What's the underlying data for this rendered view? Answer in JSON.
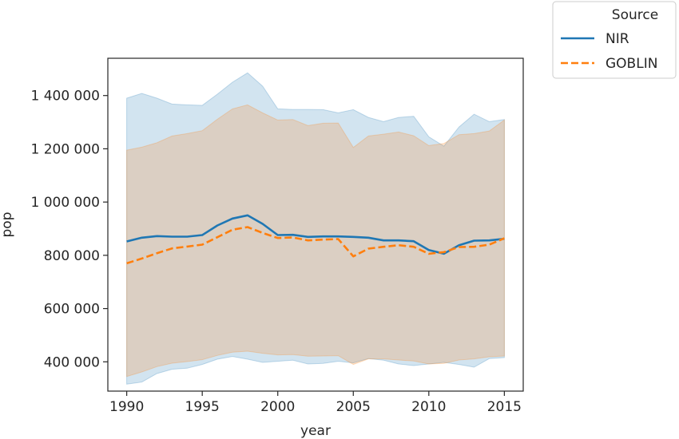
{
  "chart_data": {
    "type": "line",
    "xlabel": "year",
    "ylabel": "pop",
    "xlim": [
      1988.75,
      2016.25
    ],
    "ylim": [
      290000,
      1540000
    ],
    "x_ticks": [
      1990,
      1995,
      2000,
      2005,
      2010,
      2015
    ],
    "x_tick_labels": [
      "1990",
      "1995",
      "2000",
      "2005",
      "2010",
      "2015"
    ],
    "y_ticks": [
      400000,
      600000,
      800000,
      1000000,
      1200000,
      1400000
    ],
    "y_tick_labels": [
      "400 000",
      "600 000",
      "800 000",
      "1 000 000",
      "1 200 000",
      "1 400 000"
    ],
    "grid": false,
    "legend": {
      "title": "Source",
      "placement": "outside-top-right"
    },
    "x": [
      1990,
      1991,
      1992,
      1993,
      1994,
      1995,
      1996,
      1997,
      1998,
      1999,
      2000,
      2001,
      2002,
      2003,
      2004,
      2005,
      2006,
      2007,
      2008,
      2009,
      2010,
      2011,
      2012,
      2013,
      2014,
      2015
    ],
    "series": [
      {
        "name": "NIR",
        "color": "#1f77b4",
        "dash": "solid",
        "values": [
          852000,
          866000,
          872000,
          870000,
          870000,
          876000,
          912000,
          938000,
          950000,
          918000,
          876000,
          877000,
          869000,
          871000,
          871000,
          869000,
          866000,
          856000,
          856000,
          853000,
          820000,
          806000,
          838000,
          855000,
          856000,
          862000
        ],
        "band_upper": [
          1390000,
          1408000,
          1390000,
          1368000,
          1365000,
          1363000,
          1405000,
          1450000,
          1485000,
          1435000,
          1350000,
          1348000,
          1348000,
          1347000,
          1335000,
          1347000,
          1318000,
          1302000,
          1318000,
          1322000,
          1245000,
          1210000,
          1282000,
          1330000,
          1302000,
          1310000
        ],
        "band_lower": [
          316000,
          324000,
          356000,
          372000,
          376000,
          390000,
          410000,
          420000,
          410000,
          398000,
          402000,
          406000,
          392000,
          394000,
          402000,
          396000,
          412000,
          406000,
          392000,
          386000,
          392000,
          398000,
          390000,
          380000,
          412000,
          416000
        ]
      },
      {
        "name": "GOBLIN",
        "color": "#ff7f0e",
        "dash": "dashed",
        "values": [
          770000,
          788000,
          808000,
          826000,
          833000,
          840000,
          868000,
          896000,
          906000,
          884000,
          865000,
          867000,
          856000,
          859000,
          861000,
          796000,
          825000,
          832000,
          838000,
          832000,
          806000,
          812000,
          831000,
          832000,
          840000,
          864000
        ],
        "band_upper": [
          1195000,
          1206000,
          1223000,
          1248000,
          1257000,
          1268000,
          1311000,
          1350000,
          1365000,
          1335000,
          1308000,
          1310000,
          1287000,
          1296000,
          1297000,
          1205000,
          1248000,
          1255000,
          1263000,
          1249000,
          1212000,
          1220000,
          1253000,
          1257000,
          1267000,
          1308000
        ],
        "band_lower": [
          345000,
          362000,
          382000,
          395000,
          401000,
          408000,
          424000,
          436000,
          440000,
          432000,
          426000,
          427000,
          421000,
          422000,
          423000,
          390000,
          411000,
          411000,
          407000,
          403000,
          392000,
          394000,
          407000,
          411000,
          419000,
          422000
        ]
      }
    ]
  }
}
